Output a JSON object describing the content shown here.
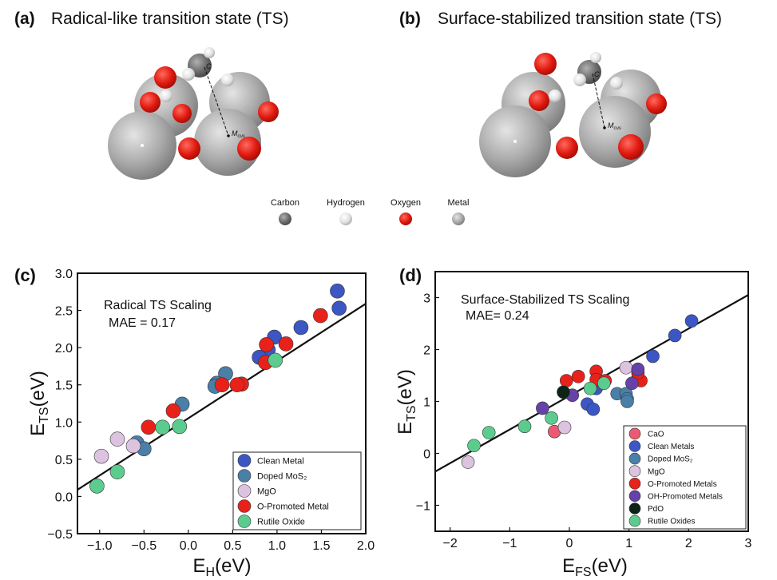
{
  "figure": {
    "panel_a": {
      "letter": "(a)",
      "title": "Radical-like transition state (TS)",
      "carbon_label": "C",
      "metal_label": "M",
      "metal_label_sub": "cus"
    },
    "panel_b": {
      "letter": "(b)",
      "title": "Surface-stabilized transition state (TS)",
      "carbon_label": "C",
      "metal_label": "M",
      "metal_label_sub": "cus"
    },
    "atom_legend": [
      "Carbon",
      "Hydrogen",
      "Oxygen",
      "Metal"
    ]
  },
  "chart_data": [
    {
      "type": "scatter",
      "panel_label": "(c)",
      "annotation": "Radical TS Scaling",
      "annotation_2": "MAE = 0.17",
      "x_label": "E",
      "x_label_sub": "H",
      "x_label_unit": "(eV)",
      "y_label": "E",
      "y_label_sub": "TS",
      "y_label_unit": "(eV)",
      "xlim": [
        -1.25,
        2.0
      ],
      "ylim": [
        -0.5,
        3.0
      ],
      "xticks": [
        {
          "value": -1.0,
          "label": "−1.0"
        },
        {
          "value": -0.5,
          "label": "−0.5"
        },
        {
          "value": 0.0,
          "label": "0.0"
        },
        {
          "value": 0.5,
          "label": "0.5"
        },
        {
          "value": 1.0,
          "label": "1.0"
        },
        {
          "value": 1.5,
          "label": "1.5"
        },
        {
          "value": 2.0,
          "label": "2.0"
        }
      ],
      "yticks": [
        {
          "value": -0.5,
          "label": "−0.5"
        },
        {
          "value": 0.0,
          "label": "0.0"
        },
        {
          "value": 0.5,
          "label": "0.5"
        },
        {
          "value": 1.0,
          "label": "1.0"
        },
        {
          "value": 1.5,
          "label": "1.5"
        },
        {
          "value": 2.0,
          "label": "2.0"
        },
        {
          "value": 2.5,
          "label": "2.5"
        },
        {
          "value": 3.0,
          "label": "3.0"
        }
      ],
      "grid": false,
      "legend": "lower right",
      "fit_line": {
        "x": [
          -1.25,
          2.0
        ],
        "y": [
          0.09,
          2.59
        ],
        "color": "#111111"
      },
      "series": [
        {
          "name": "Clean Metal",
          "color": "#3c56c4",
          "x": [
            1.68,
            1.7,
            1.27,
            0.97,
            0.9,
            0.8
          ],
          "values": [
            2.76,
            2.53,
            2.27,
            2.14,
            1.97,
            1.87
          ]
        },
        {
          "name": "Doped MoS₂",
          "color": "#4a7fa8",
          "x": [
            0.42,
            0.32,
            0.3,
            -0.07,
            -0.58,
            -0.5
          ],
          "values": [
            1.65,
            1.52,
            1.48,
            1.24,
            0.72,
            0.64
          ]
        },
        {
          "name": "MgO",
          "color": "#dcc3e0",
          "x": [
            -0.98,
            -0.8,
            -0.62
          ],
          "values": [
            0.54,
            0.77,
            0.68
          ]
        },
        {
          "name": "O-Promoted Metal",
          "color": "#e8221b",
          "x": [
            1.49,
            1.1,
            0.88,
            0.87,
            0.6,
            0.55,
            0.38,
            -0.17,
            -0.45
          ],
          "values": [
            2.43,
            2.05,
            2.04,
            1.8,
            1.51,
            1.5,
            1.5,
            1.15,
            0.93
          ]
        },
        {
          "name": "Rutile Oxide",
          "color": "#5ccc8e",
          "x": [
            0.98,
            -0.29,
            -0.1,
            -0.8,
            -1.03
          ],
          "values": [
            1.83,
            0.93,
            0.94,
            0.33,
            0.14
          ]
        }
      ]
    },
    {
      "type": "scatter",
      "panel_label": "(d)",
      "annotation": "Surface-Stabilized TS Scaling",
      "annotation_2": "MAE= 0.24",
      "x_label": "E",
      "x_label_sub": "FS",
      "x_label_unit": "(eV)",
      "y_label": "E",
      "y_label_sub": "TS",
      "y_label_unit": "(eV)",
      "xlim": [
        -2.25,
        3
      ],
      "ylim": [
        -1.5,
        3.5
      ],
      "xticks": [
        {
          "value": -2,
          "label": "−2"
        },
        {
          "value": -1,
          "label": "−1"
        },
        0,
        1,
        2,
        3
      ],
      "yticks": [
        {
          "value": -1,
          "label": "−1"
        },
        0,
        1,
        2,
        3
      ],
      "grid": false,
      "legend": "lower right",
      "fit_line": {
        "x": [
          -2.25,
          3
        ],
        "y": [
          -0.35,
          3.05
        ],
        "color": "#111111"
      },
      "series": [
        {
          "name": "CaO",
          "color": "#ea5a72",
          "x": [
            -0.25
          ],
          "values": [
            0.42
          ]
        },
        {
          "name": "Clean Metals",
          "color": "#3c56c4",
          "x": [
            2.05,
            1.77,
            1.4,
            1.15,
            0.55,
            0.45,
            0.3,
            0.4
          ],
          "values": [
            2.55,
            2.27,
            1.87,
            1.45,
            1.35,
            1.25,
            0.95,
            0.85
          ]
        },
        {
          "name": "Doped MoS₂",
          "color": "#4a7fa8",
          "x": [
            0.8,
            0.95,
            0.97,
            0.97
          ],
          "values": [
            1.15,
            1.15,
            1.05,
            1.0
          ]
        },
        {
          "name": "MgO",
          "color": "#dcc3e0",
          "x": [
            -1.7,
            -0.08,
            0.95
          ],
          "values": [
            -0.17,
            0.5,
            1.65
          ]
        },
        {
          "name": "O-Promoted Metals",
          "color": "#e8221b",
          "x": [
            -0.05,
            0.15,
            0.45,
            0.45,
            0.6,
            1.2,
            1.15
          ],
          "values": [
            1.4,
            1.48,
            1.58,
            1.42,
            1.4,
            1.4,
            1.55
          ]
        },
        {
          "name": "OH-Promoted Metals",
          "color": "#6541a8",
          "x": [
            -0.45,
            0.05,
            1.15,
            1.05
          ],
          "values": [
            0.87,
            1.12,
            1.62,
            1.35
          ]
        },
        {
          "name": "PdO",
          "color": "#0c2418",
          "x": [
            -0.1
          ],
          "values": [
            1.18
          ]
        },
        {
          "name": "Rutile Oxides",
          "color": "#5ccc8e",
          "x": [
            -1.6,
            -1.35,
            -0.75,
            -0.3,
            0.35,
            0.58
          ],
          "values": [
            0.15,
            0.4,
            0.52,
            0.68,
            1.25,
            1.35
          ]
        }
      ]
    }
  ]
}
